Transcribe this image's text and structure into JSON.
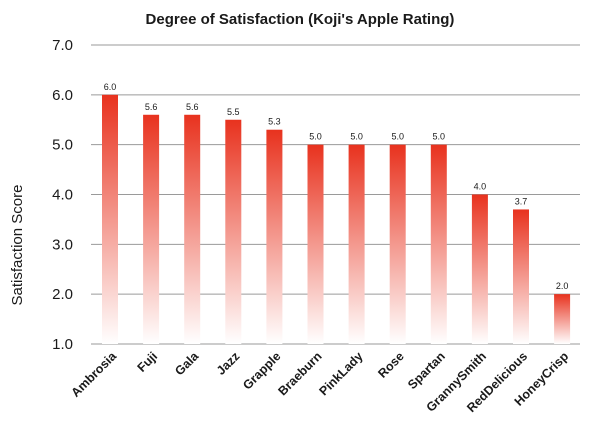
{
  "chart_data": {
    "type": "bar",
    "title": "Degree of Satisfaction (Koji's Apple Rating)",
    "xlabel": "",
    "ylabel": "Satisfaction Score",
    "ylim": [
      1.0,
      7.0
    ],
    "yticks": [
      "1.0",
      "2.0",
      "3.0",
      "4.0",
      "5.0",
      "6.0",
      "7.0"
    ],
    "grid": true,
    "categories": [
      "Ambrosia",
      "Fuji",
      "Gala",
      "Jazz",
      "Grapple",
      "Braeburn",
      "PinkLady",
      "Rose",
      "Spartan",
      "GrannySmith",
      "RedDelicious",
      "HoneyCrisp"
    ],
    "values": [
      6.0,
      5.6,
      5.6,
      5.5,
      5.3,
      5.0,
      5.0,
      5.0,
      5.0,
      4.0,
      3.7,
      2.0
    ],
    "data_labels": [
      "6.0",
      "5.6",
      "5.6",
      "5.5",
      "5.3",
      "5.0",
      "5.0",
      "5.0",
      "5.0",
      "4.0",
      "3.7",
      "2.0"
    ],
    "bar_color_top": "#e8321e",
    "bar_color_bottom": "#ffffff"
  }
}
